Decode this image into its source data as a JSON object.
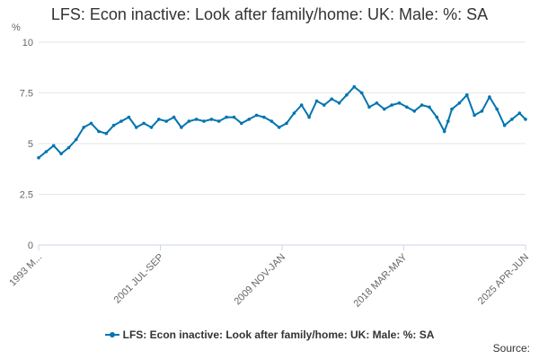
{
  "title": "LFS: Econ inactive: Look after family/home: UK: Male: %: SA",
  "source_label": "Source:",
  "colors": {
    "series": "#0075b0",
    "grid": "#e6e6e6",
    "axis": "#ccd6eb"
  },
  "chart_data": {
    "type": "line",
    "unit_label": "%",
    "ylim": [
      0,
      10
    ],
    "y_ticks": [
      0,
      2.5,
      5,
      7.5,
      10
    ],
    "y_tick_labels": [
      "0",
      "2.5",
      "5",
      "7.5",
      "10"
    ],
    "x_tick_labels": [
      "1993 M...",
      "2001 JUL-SEP",
      "2009 NOV-JAN",
      "2018 MAR-MAY",
      "2025 APR-JUN"
    ],
    "grid": true,
    "legend_position": "bottom",
    "series": [
      {
        "name": "LFS: Econ inactive: Look after family/home: UK: Male: %: SA",
        "x": [
          "1993",
          "1993.5",
          "1994",
          "1994.5",
          "1995",
          "1995.5",
          "1996",
          "1996.5",
          "1997",
          "1997.5",
          "1998",
          "1998.5",
          "1999",
          "1999.5",
          "2000",
          "2000.5",
          "2001",
          "2001.5",
          "2002",
          "2002.5",
          "2003",
          "2003.5",
          "2004",
          "2004.5",
          "2005",
          "2005.5",
          "2006",
          "2006.5",
          "2007",
          "2007.5",
          "2008",
          "2008.5",
          "2009",
          "2009.5",
          "2010",
          "2010.5",
          "2011",
          "2011.5",
          "2012",
          "2012.5",
          "2013",
          "2013.5",
          "2014",
          "2014.5",
          "2015",
          "2015.5",
          "2016",
          "2016.5",
          "2017",
          "2017.5",
          "2018",
          "2018.5",
          "2019",
          "2019.5",
          "2020",
          "2020.25",
          "2020.5",
          "2021",
          "2021.5",
          "2022",
          "2022.5",
          "2023",
          "2023.5",
          "2024",
          "2024.5",
          "2025",
          "2025.4"
        ],
        "values": [
          4.3,
          4.6,
          4.9,
          4.5,
          4.8,
          5.2,
          5.8,
          6.0,
          5.6,
          5.5,
          5.9,
          6.1,
          6.3,
          5.8,
          6.0,
          5.8,
          6.2,
          6.1,
          6.3,
          5.8,
          6.1,
          6.2,
          6.1,
          6.2,
          6.1,
          6.3,
          6.3,
          6.0,
          6.2,
          6.4,
          6.3,
          6.1,
          5.8,
          6.0,
          6.5,
          6.9,
          6.3,
          7.1,
          6.9,
          7.2,
          7.0,
          7.4,
          7.8,
          7.5,
          6.8,
          7.0,
          6.7,
          6.9,
          7.0,
          6.8,
          6.6,
          6.9,
          6.8,
          6.3,
          5.6,
          6.1,
          6.7,
          7.0,
          7.4,
          6.4,
          6.6,
          7.3,
          6.7,
          5.9,
          6.2,
          6.5,
          6.2
        ],
        "color": "#0075b0"
      }
    ]
  }
}
